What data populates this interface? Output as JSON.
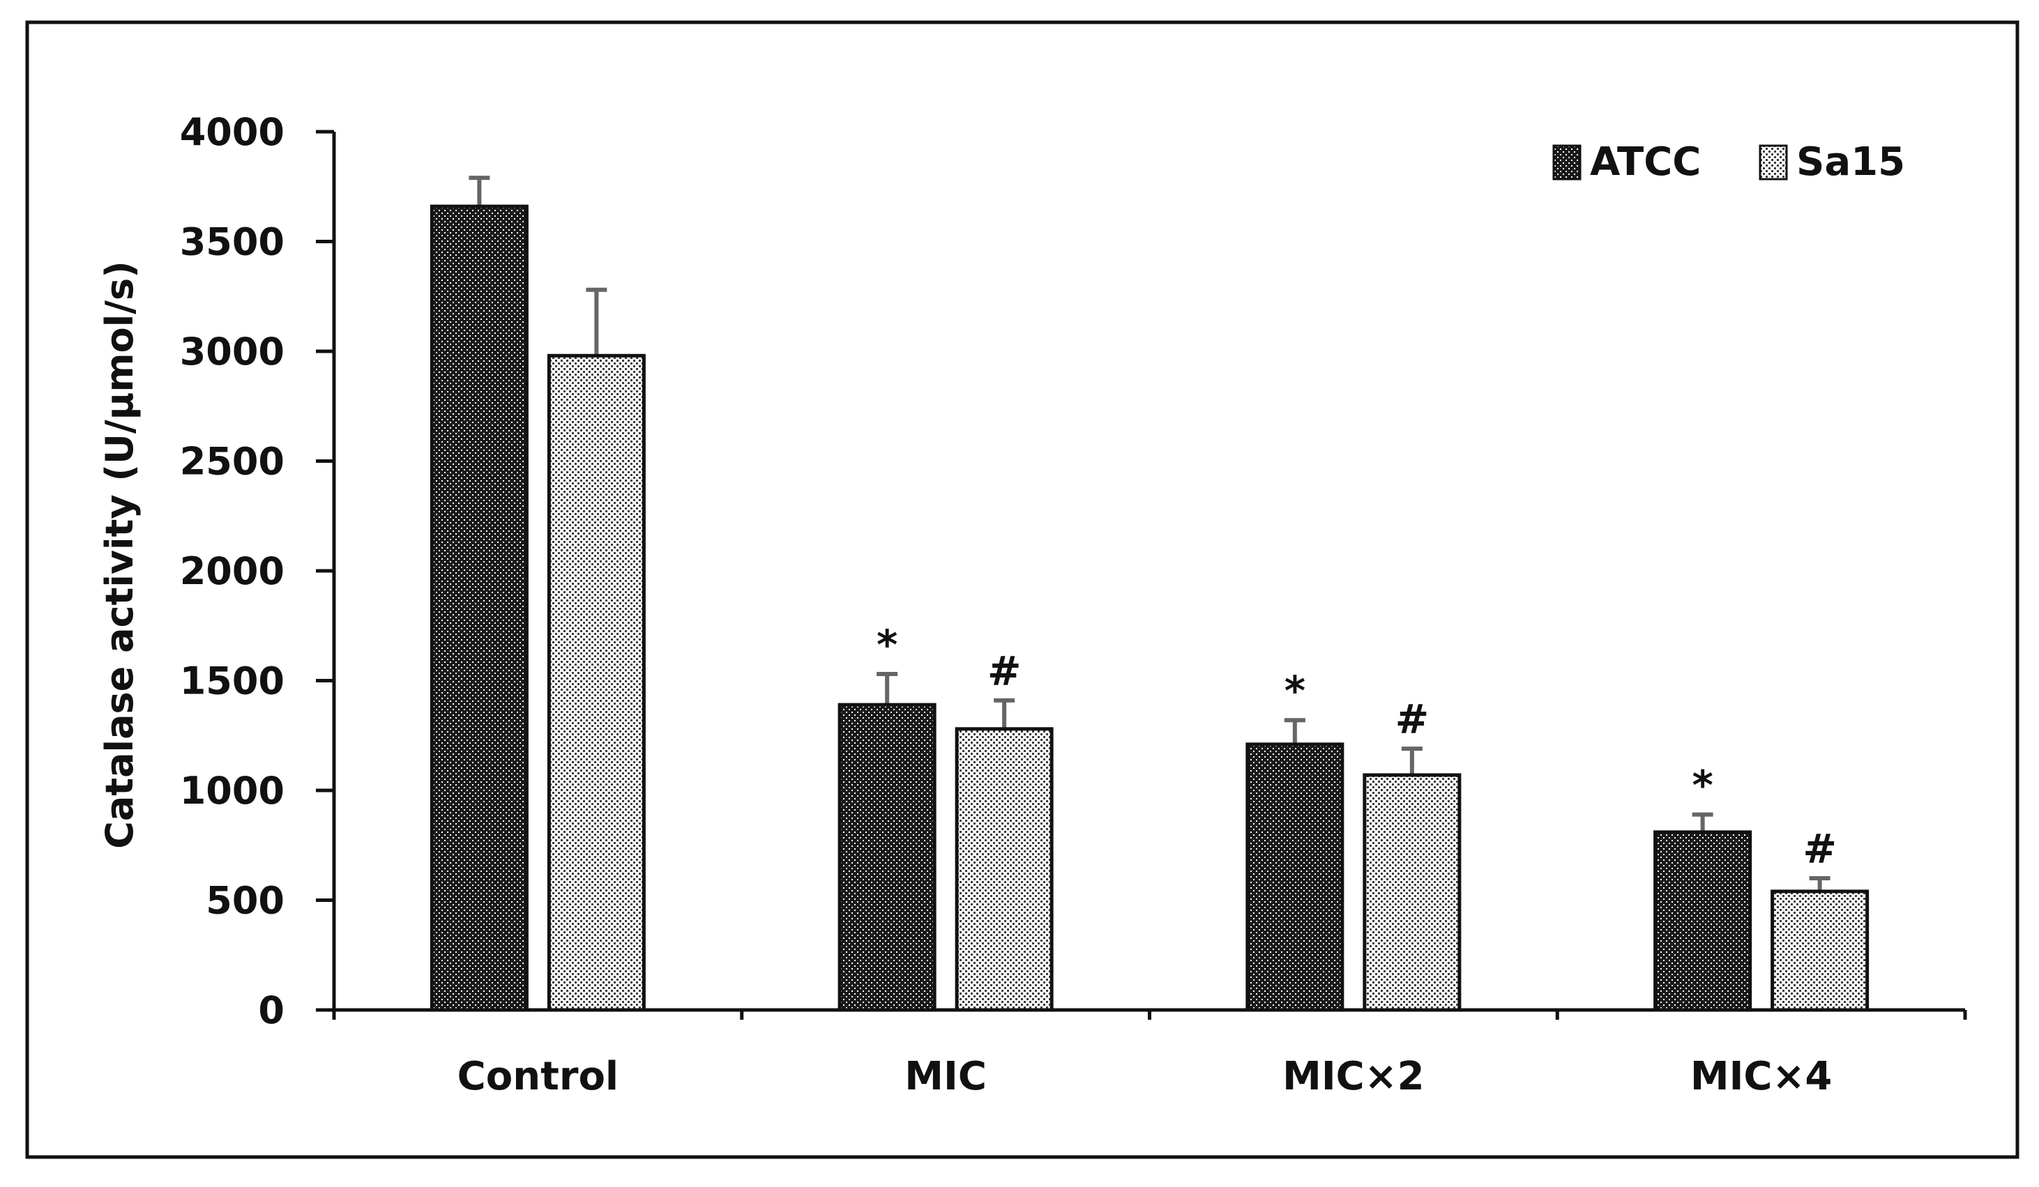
{
  "chart_data": {
    "type": "bar",
    "title": "",
    "xlabel": "",
    "ylabel": "Catalase activity (U/μmol/s)",
    "ylim": [
      0,
      4000
    ],
    "yticks": [
      0,
      500,
      1000,
      1500,
      2000,
      2500,
      3000,
      3500,
      4000
    ],
    "ytick_labels": [
      "0",
      "500",
      "1000",
      "1500",
      "2000",
      "2500",
      "3000",
      "3500",
      "4000"
    ],
    "categories": [
      "Control",
      "MIC",
      "MIC×2",
      "MIC×4"
    ],
    "legend_position": "top-right",
    "grid": false,
    "series": [
      {
        "name": "ATCC",
        "pattern": "dark-dotted",
        "values": [
          3660,
          1390,
          1210,
          810
        ],
        "errors": [
          130,
          140,
          110,
          80
        ],
        "annotations": [
          "",
          "*",
          "*",
          "*"
        ]
      },
      {
        "name": "Sa15",
        "pattern": "light-dotted",
        "values": [
          2980,
          1280,
          1070,
          540
        ],
        "errors": [
          300,
          130,
          120,
          60
        ],
        "annotations": [
          "",
          "#",
          "#",
          "#"
        ]
      }
    ]
  }
}
